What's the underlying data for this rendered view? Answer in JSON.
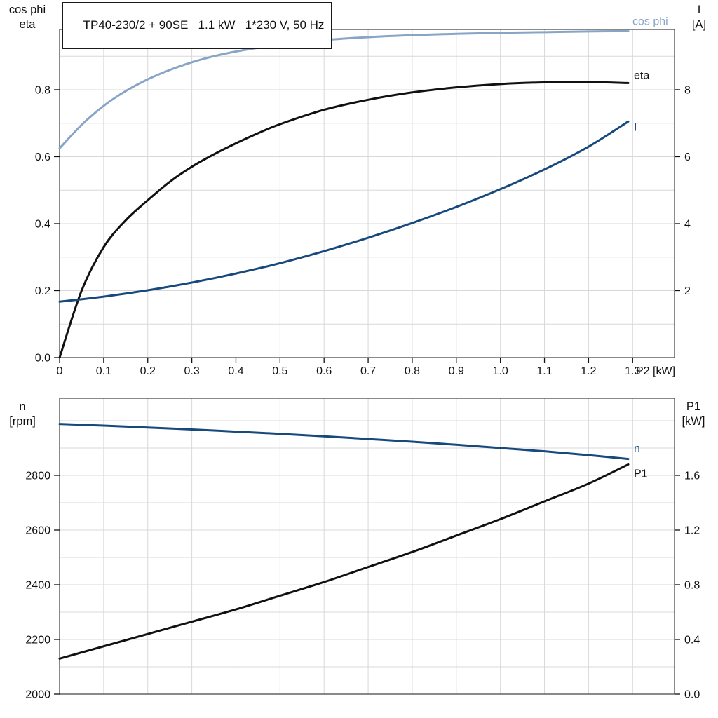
{
  "title": "TP40-230/2 + 90SE   1.1 kW   1*230 V, 50 Hz",
  "colors": {
    "black": "#111111",
    "blue": "#17497c",
    "lightblue": "#88a5c6",
    "grid": "#d8d8d8",
    "frame": "#4a4a4a"
  },
  "headers": {
    "top_left": [
      "cos phi",
      "eta"
    ],
    "top_right": [
      "I",
      "[A]"
    ],
    "bottom_left": [
      "n",
      "[rpm]"
    ],
    "bottom_right": [
      "P1",
      "[kW]"
    ]
  },
  "chart_data": [
    {
      "type": "line",
      "name": "motor-electrical-chart",
      "title": "TP40-230/2 + 90SE   1.1 kW   1*230 V, 50 Hz",
      "rect": {
        "l": 85,
        "t": 42,
        "r": 962,
        "b": 510
      },
      "x": {
        "min": 0,
        "max": 1.395,
        "label": "P2 [kW]",
        "show_labels": true,
        "ticks": [
          0,
          0.1,
          0.2,
          0.3,
          0.4,
          0.5,
          0.6,
          0.7,
          0.8,
          0.9,
          1.0,
          1.1,
          1.2,
          1.3
        ],
        "tick_labels": [
          "0",
          "0.1",
          "0.2",
          "0.3",
          "0.4",
          "0.5",
          "0.6",
          "0.7",
          "0.8",
          "0.9",
          "1.0",
          "1.1",
          "1.2",
          "1.3"
        ],
        "grid": [
          0.1,
          0.2,
          0.3,
          0.4,
          0.5,
          0.6,
          0.7,
          0.8,
          0.9,
          1.0,
          1.1,
          1.2,
          1.3
        ]
      },
      "y_left": {
        "min": 0,
        "max": 0.98,
        "ticks": [
          0,
          0.2,
          0.4,
          0.6,
          0.8
        ],
        "tick_labels": [
          "0.0",
          "0.2",
          "0.4",
          "0.6",
          "0.8"
        ],
        "grid": [
          0.1,
          0.2,
          0.3,
          0.4,
          0.5,
          0.6,
          0.7,
          0.8,
          0.9
        ]
      },
      "y_right": {
        "min": 0,
        "max": 9.8,
        "ticks": [
          2,
          4,
          6,
          8
        ],
        "tick_labels": [
          "2",
          "4",
          "6",
          "8"
        ]
      },
      "series": [
        {
          "name": "cos phi",
          "slug": "cos-phi",
          "axis": "left",
          "color_key": "lightblue",
          "label_dx": 6,
          "label_dy": -9,
          "x": [
            0,
            0.05,
            0.1,
            0.15,
            0.2,
            0.25,
            0.3,
            0.35,
            0.4,
            0.45,
            0.5,
            0.6,
            0.7,
            0.8,
            0.9,
            1.0,
            1.1,
            1.2,
            1.29
          ],
          "y": [
            0.625,
            0.695,
            0.752,
            0.796,
            0.831,
            0.859,
            0.882,
            0.9,
            0.914,
            0.925,
            0.934,
            0.948,
            0.957,
            0.963,
            0.967,
            0.97,
            0.972,
            0.974,
            0.975
          ]
        },
        {
          "name": "eta",
          "slug": "eta",
          "axis": "left",
          "color_key": "black",
          "label_dx": 8,
          "label_dy": -6,
          "x": [
            0,
            0.05,
            0.1,
            0.15,
            0.2,
            0.25,
            0.3,
            0.35,
            0.4,
            0.45,
            0.5,
            0.6,
            0.7,
            0.8,
            0.9,
            1.0,
            1.1,
            1.2,
            1.29
          ],
          "y": [
            0,
            0.2,
            0.33,
            0.41,
            0.47,
            0.525,
            0.57,
            0.607,
            0.64,
            0.67,
            0.697,
            0.74,
            0.77,
            0.792,
            0.807,
            0.817,
            0.822,
            0.823,
            0.82
          ]
        },
        {
          "name": "I",
          "slug": "current",
          "axis": "right",
          "color_key": "blue",
          "label_dx": 8,
          "label_dy": 13,
          "x": [
            0,
            0.05,
            0.1,
            0.15,
            0.2,
            0.25,
            0.3,
            0.35,
            0.4,
            0.45,
            0.5,
            0.6,
            0.7,
            0.8,
            0.9,
            1.0,
            1.1,
            1.2,
            1.29
          ],
          "y": [
            1.67,
            1.74,
            1.82,
            1.91,
            2.01,
            2.12,
            2.24,
            2.37,
            2.51,
            2.66,
            2.82,
            3.18,
            3.58,
            4.02,
            4.5,
            5.03,
            5.62,
            6.3,
            7.05
          ]
        }
      ]
    },
    {
      "type": "line",
      "name": "speed-power-chart",
      "title": "",
      "rect": {
        "l": 85,
        "t": 568,
        "r": 962,
        "b": 990
      },
      "x": {
        "min": 0,
        "max": 1.395,
        "label": "",
        "show_labels": false,
        "ticks": [],
        "tick_labels": [],
        "grid": [
          0.1,
          0.2,
          0.3,
          0.4,
          0.5,
          0.6,
          0.7,
          0.8,
          0.9,
          1.0,
          1.1,
          1.2,
          1.3
        ]
      },
      "y_left": {
        "min": 2000,
        "max": 3082,
        "ticks": [
          2000,
          2200,
          2400,
          2600,
          2800
        ],
        "tick_labels": [
          "2000",
          "2200",
          "2400",
          "2600",
          "2800"
        ],
        "grid": [
          2100,
          2200,
          2300,
          2400,
          2500,
          2600,
          2700,
          2800,
          2900,
          3000
        ]
      },
      "y_right": {
        "min": 0,
        "max": 2.164,
        "ticks": [
          0,
          0.4,
          0.8,
          1.2,
          1.6
        ],
        "tick_labels": [
          "0.0",
          "0.4",
          "0.8",
          "1.2",
          "1.6"
        ]
      },
      "series": [
        {
          "name": "n",
          "slug": "speed",
          "axis": "left",
          "color_key": "blue",
          "label_dx": 8,
          "label_dy": -10,
          "x": [
            0,
            0.1,
            0.2,
            0.3,
            0.4,
            0.5,
            0.6,
            0.7,
            0.8,
            0.9,
            1.0,
            1.1,
            1.2,
            1.29
          ],
          "y": [
            2988,
            2982,
            2975,
            2968,
            2960,
            2952,
            2943,
            2933,
            2923,
            2912,
            2900,
            2888,
            2874,
            2860
          ]
        },
        {
          "name": "P1",
          "slug": "input-power",
          "axis": "right",
          "color_key": "black",
          "label_dx": 8,
          "label_dy": 18,
          "x": [
            0,
            0.1,
            0.2,
            0.3,
            0.4,
            0.5,
            0.6,
            0.7,
            0.8,
            0.9,
            1.0,
            1.1,
            1.2,
            1.29
          ],
          "y": [
            0.26,
            0.35,
            0.44,
            0.53,
            0.62,
            0.72,
            0.82,
            0.93,
            1.04,
            1.16,
            1.28,
            1.41,
            1.54,
            1.68
          ]
        }
      ]
    }
  ]
}
